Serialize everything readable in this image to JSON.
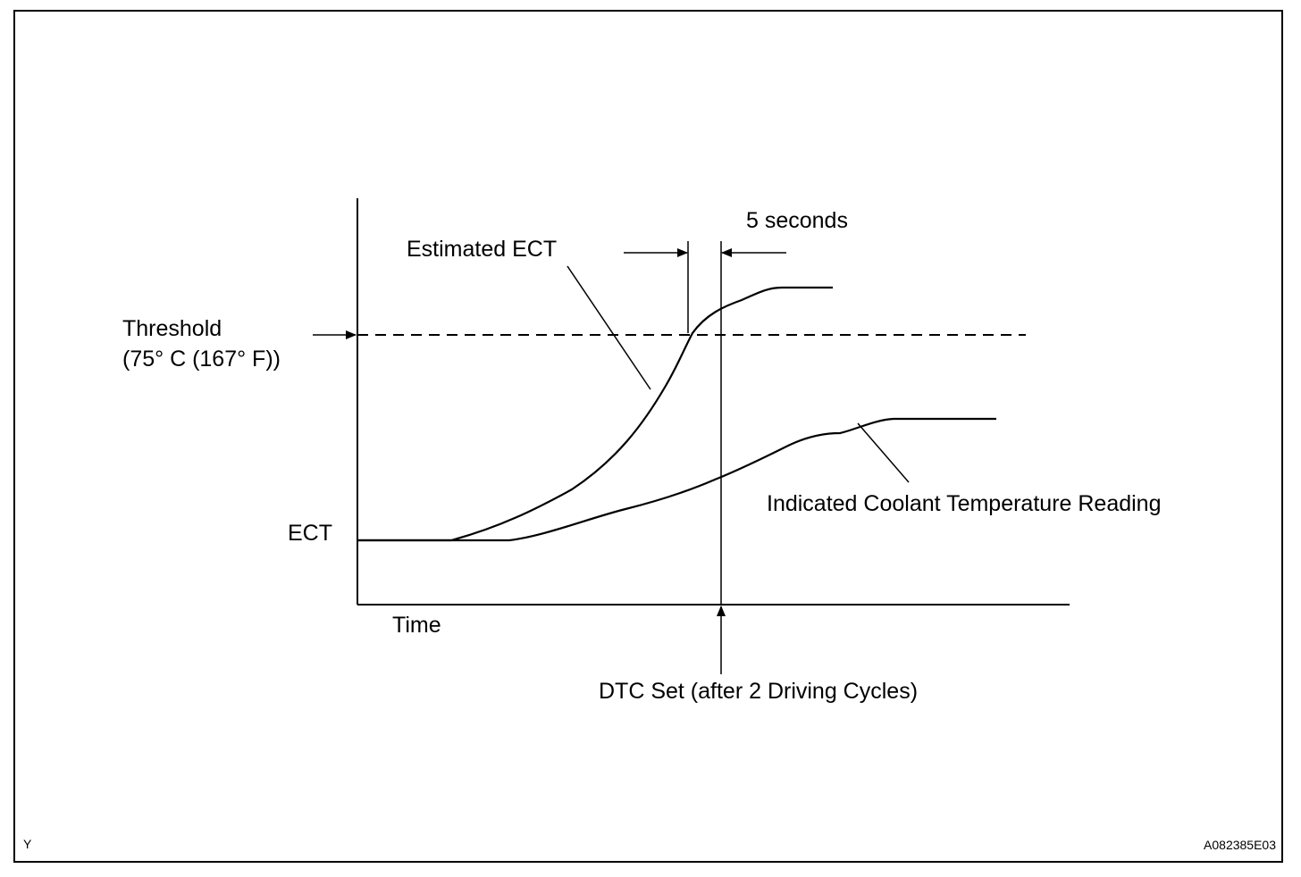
{
  "diagram": {
    "labels": {
      "threshold_line1": "Threshold",
      "threshold_line2": "(75° C (167° F))",
      "estimated_ect": "Estimated ECT",
      "five_seconds": "5 seconds",
      "ect_axis": "ECT",
      "time_axis": "Time",
      "indicated_reading": "Indicated Coolant Temperature Reading",
      "dtc_set": "DTC Set (after 2 Driving Cycles)"
    },
    "corner_left": "Y",
    "figure_code": "A082385E03"
  }
}
